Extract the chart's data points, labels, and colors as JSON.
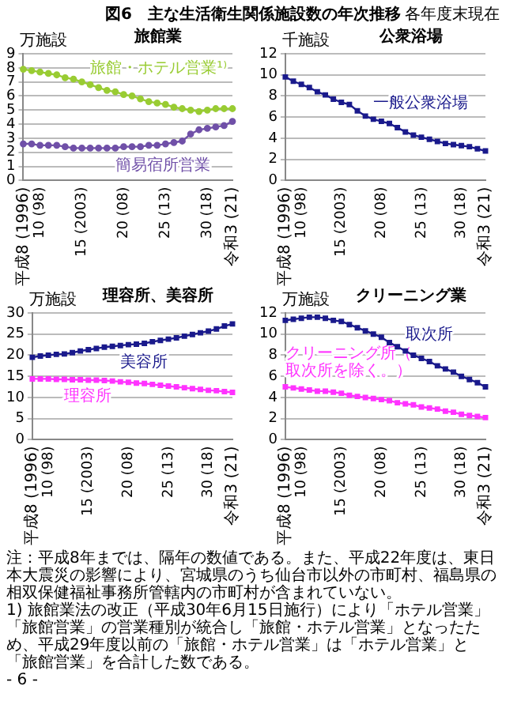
{
  "chart_data": [
    {
      "type": "other",
      "title": "図6　主な生活衛生関係施設数の年次推移",
      "subtitle": "各年度末現在"
    },
    {
      "type": "line",
      "title": "旅館業",
      "ylabel": "万施設",
      "categories": [
        "平成8 (1996)",
        null,
        "10 (98)",
        null,
        null,
        null,
        null,
        "15 (2003)",
        null,
        null,
        null,
        null,
        "20 (08)",
        null,
        null,
        null,
        null,
        "25 (13)",
        null,
        null,
        null,
        null,
        "30 (18)",
        null,
        null,
        "令和3 (21)"
      ],
      "ylim": [
        0,
        9
      ],
      "yticks": [
        0,
        1,
        2,
        3,
        4,
        5,
        6,
        7,
        8,
        9
      ],
      "grid": "y",
      "marker": "circle",
      "series": [
        {
          "name": "旅館・ホテル営業¹⁾",
          "color": "#99cc33",
          "values": [
            7.9,
            7.8,
            7.7,
            7.6,
            7.5,
            7.3,
            7.2,
            7.0,
            6.8,
            6.6,
            6.4,
            6.3,
            6.1,
            6.0,
            5.8,
            5.6,
            5.5,
            5.4,
            5.2,
            5.1,
            5.0,
            4.9,
            5.0,
            5.1,
            5.1,
            5.1
          ]
        },
        {
          "name": "簡易宿所営業",
          "color": "#7050a8",
          "values": [
            2.6,
            2.6,
            2.5,
            2.5,
            2.5,
            2.4,
            2.3,
            2.3,
            2.3,
            2.3,
            2.3,
            2.3,
            2.4,
            2.4,
            2.4,
            2.5,
            2.5,
            2.6,
            2.7,
            2.8,
            3.3,
            3.6,
            3.7,
            3.8,
            3.9,
            4.2
          ]
        }
      ]
    },
    {
      "type": "line",
      "title": "公衆浴場",
      "ylabel": "千施設",
      "categories": [
        "平成8 (1996)",
        null,
        "10 (98)",
        null,
        null,
        null,
        null,
        "15 (2003)",
        null,
        null,
        null,
        null,
        "20 (08)",
        null,
        null,
        null,
        null,
        "25 (13)",
        null,
        null,
        null,
        null,
        "30 (18)",
        null,
        null,
        "令和3 (21)"
      ],
      "ylim": [
        0,
        12
      ],
      "yticks": [
        0,
        2,
        4,
        6,
        8,
        10,
        12
      ],
      "grid": "y",
      "marker": "square",
      "series": [
        {
          "name": "一般公衆浴場",
          "color": "#1a1a8c",
          "values": [
            9.8,
            9.4,
            9.1,
            8.8,
            8.4,
            8.1,
            7.7,
            7.4,
            7.2,
            6.6,
            6.1,
            5.8,
            5.6,
            5.4,
            5.0,
            4.6,
            4.3,
            4.1,
            3.9,
            3.7,
            3.5,
            3.4,
            3.3,
            3.2,
            3.0,
            2.8
          ]
        }
      ]
    },
    {
      "type": "line",
      "title": "理容所、美容所",
      "ylabel": "万施設",
      "categories": [
        "平成8 (1996)",
        null,
        "10 (98)",
        null,
        null,
        null,
        null,
        "15 (2003)",
        null,
        null,
        null,
        null,
        "20 (08)",
        null,
        null,
        null,
        null,
        "25 (13)",
        null,
        null,
        null,
        null,
        "30 (18)",
        null,
        null,
        "令和3 (21)"
      ],
      "ylim": [
        0,
        30
      ],
      "yticks": [
        0,
        5,
        10,
        15,
        20,
        25,
        30
      ],
      "grid": "y",
      "marker": "square",
      "series": [
        {
          "name": "美容所",
          "color": "#1a1a8c",
          "values": [
            19.5,
            19.8,
            20.0,
            20.2,
            20.3,
            20.6,
            21.0,
            21.3,
            21.6,
            21.9,
            22.1,
            22.3,
            22.5,
            22.6,
            22.8,
            23.2,
            23.5,
            23.8,
            24.1,
            24.5,
            24.9,
            25.3,
            25.7,
            26.2,
            26.9,
            27.4
          ]
        },
        {
          "name": "理容所",
          "color": "#ff33ff",
          "values": [
            14.4,
            14.4,
            14.4,
            14.3,
            14.3,
            14.2,
            14.2,
            14.1,
            14.1,
            14.0,
            13.9,
            13.7,
            13.6,
            13.4,
            13.3,
            13.1,
            12.9,
            12.7,
            12.5,
            12.3,
            12.1,
            11.9,
            11.7,
            11.6,
            11.4,
            11.2
          ]
        }
      ]
    },
    {
      "type": "line",
      "title": "クリーニング業",
      "ylabel": "万施設",
      "categories": [
        "平成8 (1996)",
        null,
        "10 (98)",
        null,
        null,
        null,
        null,
        "15 (2003)",
        null,
        null,
        null,
        null,
        "20 (08)",
        null,
        null,
        null,
        null,
        "25 (13)",
        null,
        null,
        null,
        null,
        "30 (18)",
        null,
        null,
        "令和3 (21)"
      ],
      "ylim": [
        0,
        12
      ],
      "yticks": [
        0,
        2,
        4,
        6,
        8,
        10,
        12
      ],
      "grid": "y",
      "marker": "square",
      "series": [
        {
          "name": "取次所",
          "color": "#1a1a8c",
          "values": [
            11.3,
            11.4,
            11.5,
            11.6,
            11.6,
            11.5,
            11.3,
            11.2,
            10.9,
            10.6,
            10.3,
            10.0,
            9.7,
            9.2,
            8.8,
            8.4,
            8.0,
            7.7,
            7.4,
            7.0,
            6.7,
            6.4,
            6.0,
            5.7,
            5.4,
            5.0
          ]
        },
        {
          "name": "クリーニング所（取次所を除く。）",
          "color": "#ff33ff",
          "values": [
            5.0,
            4.9,
            4.8,
            4.7,
            4.6,
            4.6,
            4.5,
            4.4,
            4.2,
            4.1,
            4.0,
            3.9,
            3.8,
            3.7,
            3.5,
            3.4,
            3.3,
            3.1,
            3.0,
            2.9,
            2.7,
            2.6,
            2.4,
            2.3,
            2.2,
            2.1
          ]
        }
      ]
    },
    {
      "type": "other",
      "annotations": [
        "注：平成8年までは、隔年の数値である。また、平成22年度は、東日本大震災の影響により、宮城県のうち仙台市以外の市町村、福島県の相双保健福祉事務所管轄内の市町村が含まれていない。",
        "1) 旅館業法の改正（平成30年6月15日施行）により「ホテル営業」「旅館営業」の営業種別が統合し「旅館・ホテル営業」となったため、平成29年度以前の「旅館・ホテル営業」は「ホテル営業」と「旅館営業」を合計した数である。",
        "- 6 -"
      ]
    }
  ]
}
